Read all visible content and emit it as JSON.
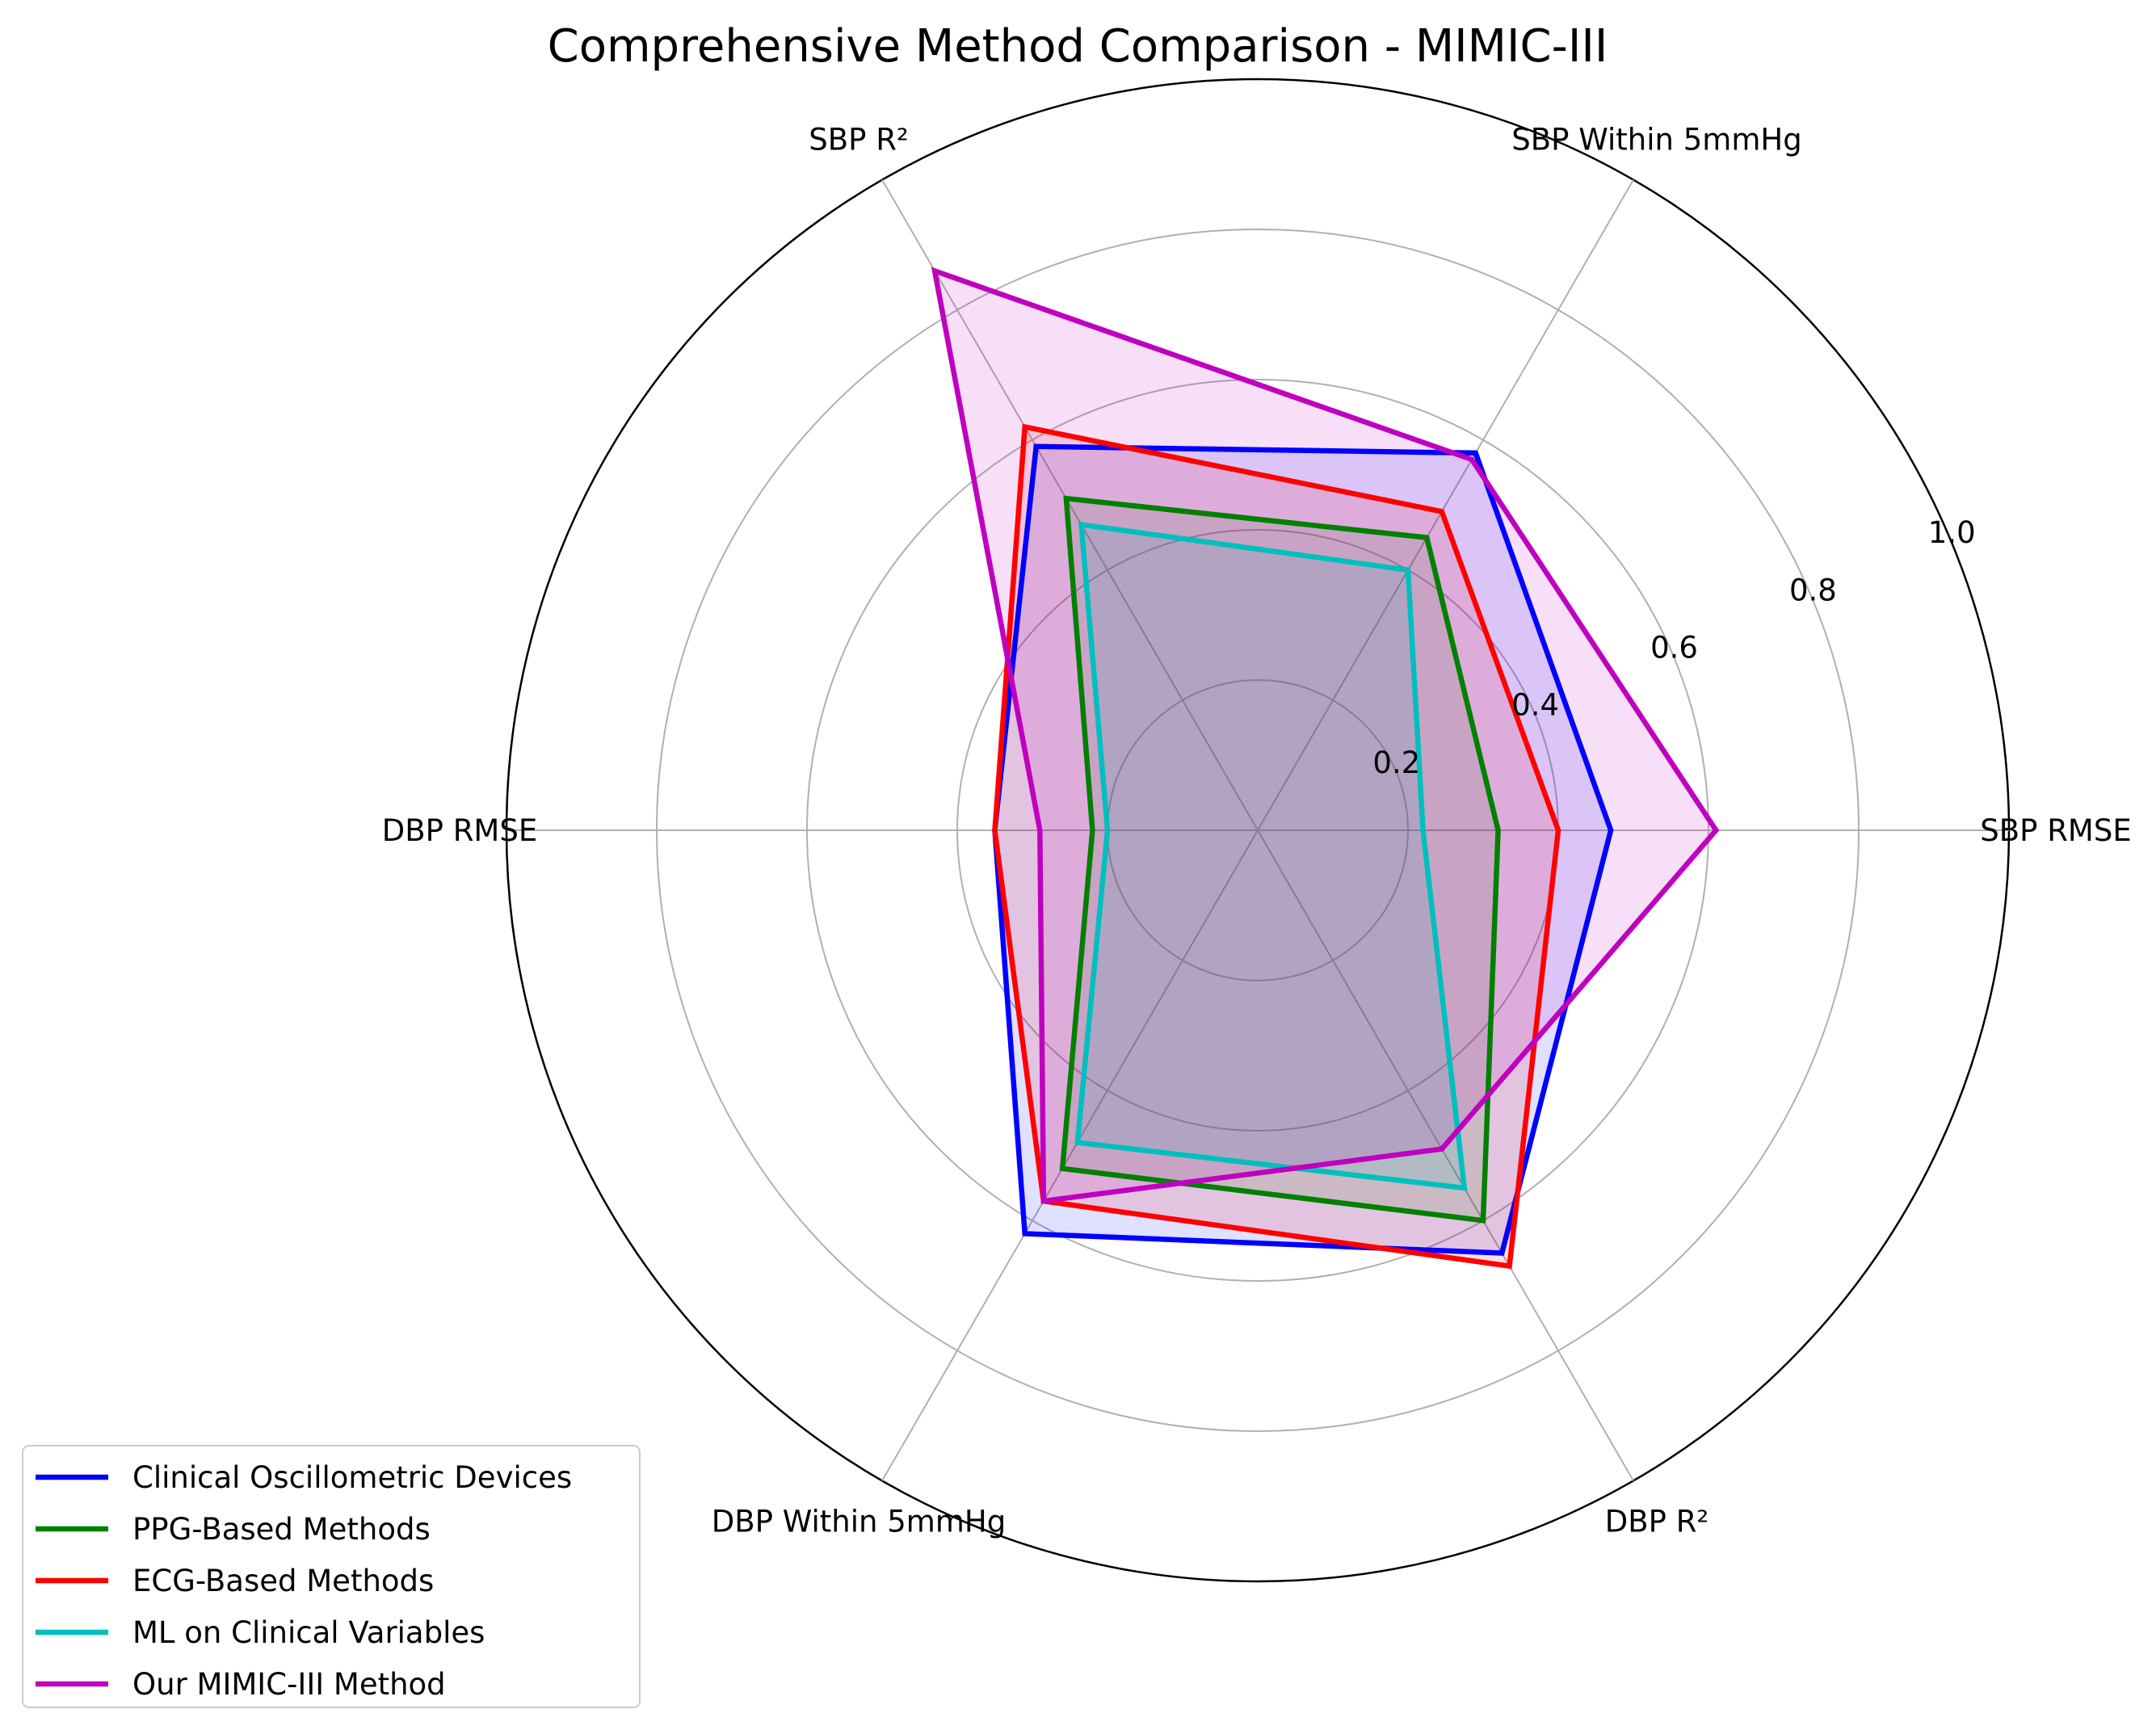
{
  "chart_data": {
    "type": "radar",
    "title": "Comprehensive Method Comparison - MIMIC-III",
    "axes": [
      "SBP RMSE",
      "SBP Within 5mmHg",
      "SBP R²",
      "DBP RMSE",
      "DBP Within 5mmHg",
      "DBP R²"
    ],
    "r_ticks": [
      0.2,
      0.4,
      0.6,
      0.8,
      1.0
    ],
    "r_tick_labels": [
      "0.2",
      "0.4",
      "0.6",
      "0.8",
      "1.0"
    ],
    "rlim": [
      0,
      1.0
    ],
    "grid": true,
    "legend_position": "lower-left",
    "series": [
      {
        "name": "Clinical Oscillometric Devices",
        "color": "#0000ff",
        "values": [
          0.47,
          0.58,
          0.59,
          0.35,
          0.62,
          0.65
        ]
      },
      {
        "name": "PPG-Based Methods",
        "color": "#008000",
        "values": [
          0.32,
          0.45,
          0.51,
          0.22,
          0.52,
          0.6
        ]
      },
      {
        "name": "ECG-Based Methods",
        "color": "#ff0000",
        "values": [
          0.4,
          0.49,
          0.62,
          0.35,
          0.57,
          0.67
        ]
      },
      {
        "name": "ML on Clinical Variables",
        "color": "#00bfbf",
        "values": [
          0.22,
          0.4,
          0.47,
          0.2,
          0.48,
          0.55
        ]
      },
      {
        "name": "Our MIMIC-III Method",
        "color": "#bf00bf",
        "values": [
          0.61,
          0.57,
          0.86,
          0.29,
          0.57,
          0.49
        ]
      }
    ]
  }
}
